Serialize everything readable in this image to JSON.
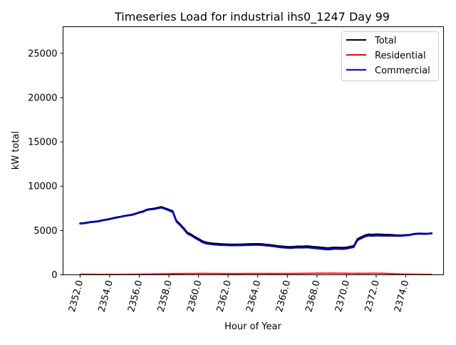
{
  "chart_data": {
    "type": "line",
    "title": "Timeseries Load for industrial ihs0_1247  Day 99",
    "xlabel": "Hour of Year",
    "ylabel": "kW total",
    "xlim": [
      2350.85,
      2376.55
    ],
    "ylim": [
      0,
      28000
    ],
    "x_ticks": [
      2352,
      2354,
      2356,
      2358,
      2360,
      2362,
      2364,
      2366,
      2368,
      2370,
      2372,
      2374
    ],
    "x_tick_labels": [
      "2352.0",
      "2354.0",
      "2356.0",
      "2358.0",
      "2360.0",
      "2362.0",
      "2364.0",
      "2366.0",
      "2368.0",
      "2370.0",
      "2372.0",
      "2374.0"
    ],
    "y_ticks": [
      0,
      5000,
      10000,
      15000,
      20000,
      25000
    ],
    "y_tick_labels": [
      "0",
      "5000",
      "10000",
      "15000",
      "20000",
      "25000"
    ],
    "legend_position": "top-right",
    "x": [
      2352.0,
      2352.25,
      2352.5,
      2352.75,
      2353.0,
      2353.25,
      2353.5,
      2353.75,
      2354.0,
      2354.25,
      2354.5,
      2354.75,
      2355.0,
      2355.25,
      2355.5,
      2355.75,
      2356.0,
      2356.25,
      2356.5,
      2356.75,
      2357.0,
      2357.25,
      2357.5,
      2357.75,
      2358.0,
      2358.25,
      2358.5,
      2358.75,
      2359.0,
      2359.25,
      2359.5,
      2359.75,
      2360.0,
      2360.25,
      2360.5,
      2360.75,
      2361.0,
      2361.25,
      2361.5,
      2361.75,
      2362.0,
      2362.25,
      2362.5,
      2362.75,
      2363.0,
      2363.25,
      2363.5,
      2363.75,
      2364.0,
      2364.25,
      2364.5,
      2364.75,
      2365.0,
      2365.25,
      2365.5,
      2365.75,
      2366.0,
      2366.25,
      2366.5,
      2366.75,
      2367.0,
      2367.25,
      2367.5,
      2367.75,
      2368.0,
      2368.25,
      2368.5,
      2368.75,
      2369.0,
      2369.25,
      2369.5,
      2369.75,
      2370.0,
      2370.25,
      2370.5,
      2370.75,
      2371.0,
      2371.25,
      2371.5,
      2371.75,
      2372.0,
      2372.25,
      2372.5,
      2372.75,
      2373.0,
      2373.25,
      2373.5,
      2373.75,
      2374.0,
      2374.25,
      2374.5,
      2374.75,
      2375.0,
      2375.25,
      2375.5,
      2375.75
    ],
    "series": [
      {
        "name": "Total",
        "color": "#000000",
        "values": [
          5800,
          5830,
          5900,
          5960,
          6000,
          6050,
          6150,
          6220,
          6300,
          6400,
          6480,
          6560,
          6650,
          6720,
          6780,
          6900,
          7050,
          7150,
          7350,
          7420,
          7470,
          7560,
          7650,
          7500,
          7350,
          7180,
          6100,
          5700,
          5250,
          4750,
          4550,
          4280,
          4050,
          3800,
          3650,
          3580,
          3530,
          3500,
          3470,
          3450,
          3430,
          3420,
          3420,
          3430,
          3440,
          3460,
          3470,
          3480,
          3480,
          3470,
          3420,
          3380,
          3330,
          3270,
          3220,
          3180,
          3150,
          3130,
          3170,
          3200,
          3180,
          3220,
          3200,
          3150,
          3120,
          3080,
          3040,
          3000,
          3050,
          3080,
          3060,
          3050,
          3080,
          3180,
          3260,
          4050,
          4250,
          4450,
          4550,
          4520,
          4570,
          4550,
          4530,
          4520,
          4500,
          4470,
          4450,
          4450,
          4480,
          4500,
          4600,
          4640,
          4650,
          4630,
          4640,
          4680
        ]
      },
      {
        "name": "Residential",
        "color": "#ff0000",
        "values": [
          60,
          58,
          55,
          55,
          53,
          52,
          52,
          50,
          50,
          50,
          50,
          50,
          52,
          55,
          58,
          60,
          65,
          70,
          75,
          80,
          85,
          90,
          95,
          100,
          110,
          120,
          125,
          130,
          135,
          140,
          140,
          140,
          145,
          145,
          145,
          140,
          140,
          138,
          135,
          132,
          130,
          130,
          130,
          132,
          135,
          138,
          140,
          140,
          140,
          140,
          138,
          135,
          135,
          135,
          138,
          140,
          140,
          140,
          145,
          150,
          155,
          160,
          165,
          170,
          175,
          178,
          180,
          180,
          178,
          175,
          172,
          168,
          165,
          162,
          160,
          158,
          158,
          160,
          165,
          168,
          170,
          165,
          155,
          140,
          120,
          100,
          90,
          80,
          72,
          66,
          60,
          55,
          50,
          48,
          46,
          45
        ]
      },
      {
        "name": "Commercial",
        "color": "#0000ff",
        "values": [
          5740,
          5772,
          5845,
          5905,
          5947,
          5998,
          6098,
          6170,
          6250,
          6350,
          6430,
          6510,
          6598,
          6665,
          6722,
          6840,
          6985,
          7080,
          7275,
          7340,
          7385,
          7470,
          7555,
          7400,
          7240,
          7060,
          5975,
          5570,
          5115,
          4610,
          4410,
          4140,
          3905,
          3655,
          3505,
          3440,
          3390,
          3362,
          3335,
          3318,
          3300,
          3290,
          3290,
          3298,
          3305,
          3322,
          3330,
          3340,
          3340,
          3330,
          3282,
          3245,
          3195,
          3135,
          3082,
          3040,
          3010,
          2990,
          3025,
          3050,
          3025,
          3060,
          3035,
          2980,
          2945,
          2902,
          2860,
          2820,
          2872,
          2905,
          2888,
          2882,
          2915,
          3018,
          3100,
          3892,
          4092,
          4290,
          4385,
          4352,
          4400,
          4385,
          4375,
          4380,
          4380,
          4370,
          4360,
          4370,
          4408,
          4434,
          4540,
          4585,
          4600,
          4582,
          4594,
          4635
        ]
      }
    ]
  }
}
